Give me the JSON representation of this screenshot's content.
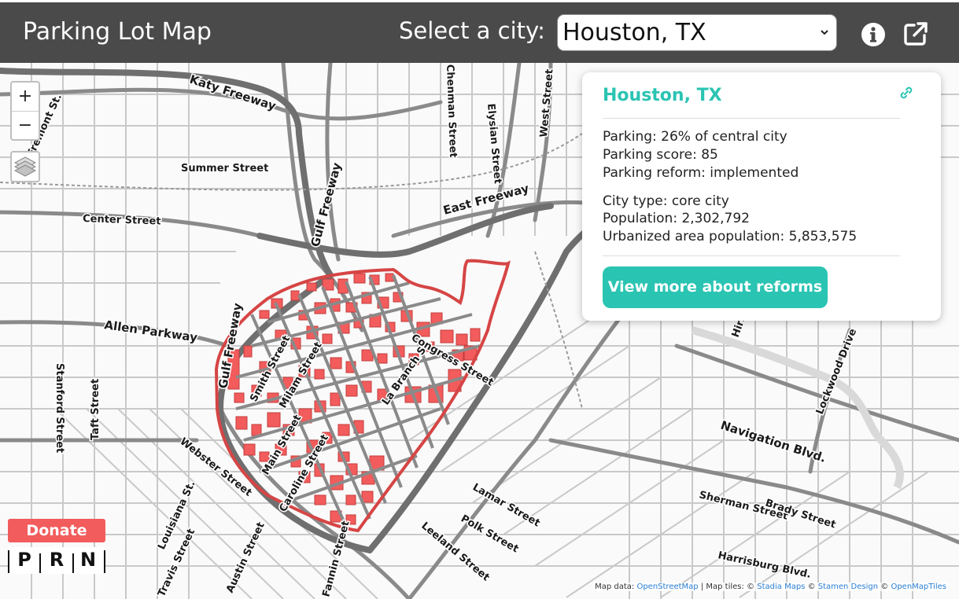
{
  "header": {
    "title": "Parking Lot Map",
    "city_label": "Select a city:",
    "city_select_value": "Houston, TX"
  },
  "map": {
    "zoom_in_label": "+",
    "zoom_out_label": "−",
    "road_labels": {
      "katy": "Katy Freeway",
      "summer": "Summer Street",
      "center": "Center Street",
      "allen": "Allen Parkway",
      "gulf1": "Gulf Freeway",
      "gulf2": "Gulf Freeway",
      "east": "East Freeway",
      "elysian": "Elysian Street",
      "west": "West Street",
      "cheman": "Chenman Street",
      "navigation": "Navigation Blvd.",
      "lockwood": "Lockwood Drive",
      "sherman": "Sherman Street",
      "brady": "Brady Street",
      "harrisburg": "Harrisburg Blvd.",
      "lamar": "Lamar Street",
      "polk": "Polk Street",
      "leeland": "Leeland Street",
      "webster": "Webster Street",
      "stanford": "Stanford Street",
      "taft": "Taft Street",
      "louisiana": "Louisiana St.",
      "austin": "Austin Street",
      "travis": "Travis Street",
      "smith": "Smith Street",
      "milam": "Milam Street",
      "main": "Main Street",
      "caroline": "Caroline Street",
      "labranch": "La Branch St.",
      "congress": "Congress Street",
      "fremont": "Fremont St.",
      "hirsch": "Hirsch",
      "rgrim": "Fannin Street"
    },
    "attribution": {
      "prefix": "Map data: ",
      "osm": "OpenStreetMap",
      "tiles": " | Map tiles: © ",
      "stadia": "Stadia Maps",
      "c1": " © ",
      "stamen": "Stamen Design",
      "c2": " © ",
      "omt": "OpenMapTiles"
    }
  },
  "popup": {
    "title": "Houston, TX",
    "parking": "Parking: 26% of central city",
    "parking_score": "Parking score: 85",
    "parking_reform": "Parking reform: implemented",
    "city_type": "City type: core city",
    "population": "Population: 2,302,792",
    "urbanized_population": "Urbanized area population: 5,853,575",
    "reforms_button": "View more about reforms"
  },
  "donate": {
    "button_label": "Donate",
    "logo_letters": [
      "P",
      "R",
      "N"
    ]
  },
  "colors": {
    "header_bg": "#4a4a4a",
    "accent": "#2ac4b2",
    "parking_red": "#f25c5c",
    "boundary_red": "#d64545"
  },
  "icons": {
    "info": "info-icon",
    "share": "external-link-icon",
    "link": "link-icon",
    "layers": "layers-icon",
    "select_arrow": "chevron-down-icon"
  }
}
